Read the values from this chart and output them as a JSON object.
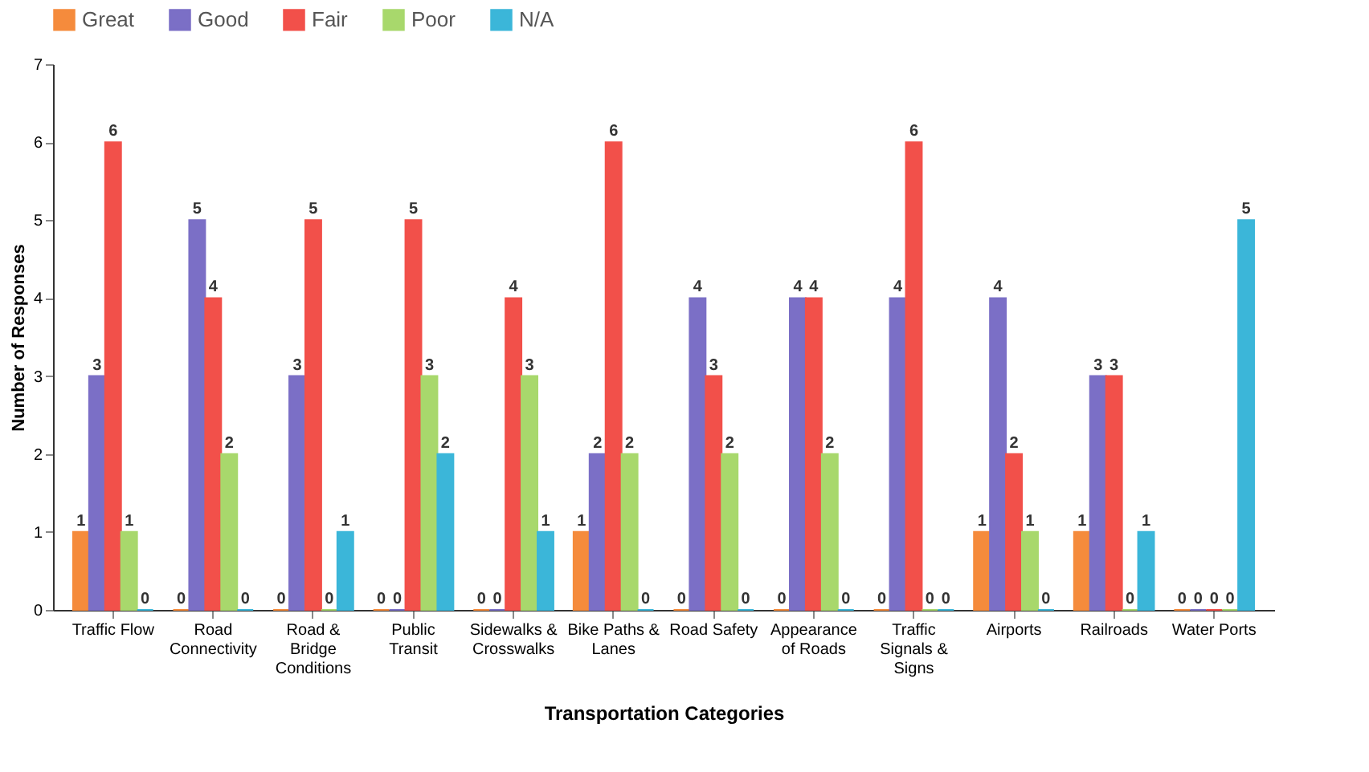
{
  "chart_data": {
    "type": "bar",
    "xlabel": "Transportation Categories",
    "ylabel": "Number of Responses",
    "categories": [
      "Traffic Flow",
      "Road Connectivity",
      "Road & Bridge Conditions",
      "Public Transit",
      "Sidewalks & Crosswalks",
      "Bike Paths & Lanes",
      "Road Safety",
      "Appearance of Roads",
      "Traffic Signals & Signs",
      "Airports",
      "Railroads",
      "Water Ports"
    ],
    "series": [
      {
        "name": "Great",
        "color": "#f58b3c",
        "values": [
          1,
          0,
          0,
          0,
          0,
          1,
          0,
          0,
          0,
          1,
          1,
          0
        ]
      },
      {
        "name": "Good",
        "color": "#7b6fc6",
        "values": [
          3,
          5,
          3,
          0,
          0,
          2,
          4,
          4,
          4,
          4,
          3,
          0
        ]
      },
      {
        "name": "Fair",
        "color": "#f2504a",
        "values": [
          6,
          4,
          5,
          5,
          4,
          6,
          3,
          4,
          6,
          2,
          3,
          0
        ]
      },
      {
        "name": "Poor",
        "color": "#a8d86c",
        "values": [
          1,
          2,
          0,
          3,
          3,
          2,
          2,
          2,
          0,
          1,
          0,
          0
        ]
      },
      {
        "name": "N/A",
        "color": "#3bb6d9",
        "values": [
          0,
          0,
          1,
          2,
          1,
          0,
          0,
          0,
          0,
          0,
          1,
          5
        ]
      }
    ],
    "ylim": [
      0,
      7
    ],
    "yticks": [
      0,
      1,
      2,
      3,
      4,
      5,
      6,
      7
    ],
    "data_labels": true,
    "legend": "top",
    "grid": false
  }
}
